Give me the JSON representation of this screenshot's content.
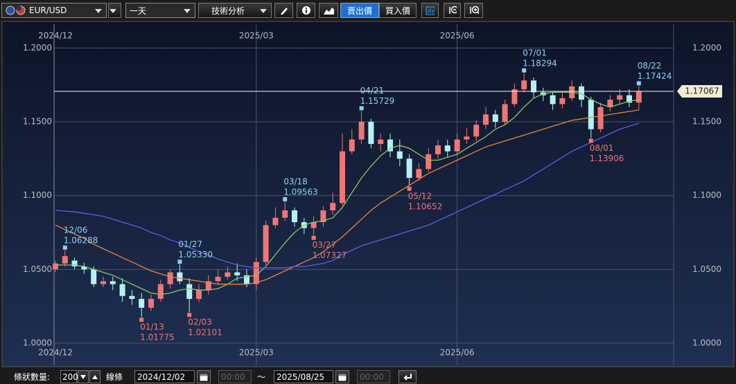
{
  "toolbar": {
    "symbol": "EUR/USD",
    "period": "一天",
    "analysis": "技術分析",
    "sell": "賣出價",
    "buy": "買入價"
  },
  "chart_data": {
    "type": "candlestick",
    "categories": [
      "2024/12",
      null,
      null,
      null,
      null,
      null,
      null,
      null,
      null,
      null,
      null,
      null,
      null,
      null,
      null,
      null,
      null,
      null,
      null,
      null,
      null,
      "2025/03",
      null,
      null,
      null,
      null,
      null,
      null,
      null,
      null,
      null,
      null,
      null,
      null,
      null,
      null,
      null,
      null,
      null,
      null,
      null,
      null,
      "2025/06",
      null,
      null,
      null,
      null,
      null,
      null,
      null,
      null,
      null,
      null,
      null,
      null,
      null,
      null,
      null,
      null,
      null,
      null,
      null
    ],
    "open": [
      1.05,
      1.054,
      1.056,
      1.052,
      1.05,
      1.04,
      1.042,
      1.04,
      1.032,
      1.03,
      1.024,
      1.03,
      1.04,
      1.048,
      1.04,
      1.03,
      1.036,
      1.042,
      1.045,
      1.048,
      1.046,
      1.04,
      1.055,
      1.08,
      1.085,
      1.09,
      1.082,
      1.078,
      1.082,
      1.09,
      1.095,
      1.13,
      1.138,
      1.15,
      1.135,
      1.138,
      1.13,
      1.125,
      1.112,
      1.118,
      1.128,
      1.134,
      1.13,
      1.138,
      1.14,
      1.148,
      1.155,
      1.15,
      1.162,
      1.172,
      1.178,
      1.17,
      1.168,
      1.162,
      1.166,
      1.174,
      1.165,
      1.145,
      1.16,
      1.165,
      1.168,
      1.163
    ],
    "high": [
      1.056,
      1.06288,
      1.058,
      1.0545,
      1.052,
      1.045,
      1.045,
      1.044,
      1.036,
      1.034,
      1.033,
      1.043,
      1.05,
      1.0533,
      1.044,
      1.04,
      1.046,
      1.05,
      1.052,
      1.054,
      1.05,
      1.058,
      1.083,
      1.092,
      1.09563,
      1.092,
      1.085,
      1.086,
      1.093,
      1.102,
      1.142,
      1.145,
      1.15729,
      1.152,
      1.142,
      1.142,
      1.138,
      1.128,
      1.122,
      1.132,
      1.138,
      1.138,
      1.142,
      1.146,
      1.151,
      1.16,
      1.158,
      1.165,
      1.176,
      1.18294,
      1.18,
      1.173,
      1.17,
      1.17,
      1.178,
      1.176,
      1.167,
      1.163,
      1.168,
      1.172,
      1.172,
      1.17424
    ],
    "low": [
      1.048,
      1.052,
      1.05,
      1.047,
      1.038,
      1.038,
      1.036,
      1.028,
      1.026,
      1.01775,
      1.022,
      1.028,
      1.037,
      1.04,
      1.02101,
      1.028,
      1.033,
      1.04,
      1.043,
      1.042,
      1.038,
      1.036,
      1.053,
      1.078,
      1.083,
      1.079,
      1.074,
      1.07327,
      1.079,
      1.087,
      1.093,
      1.128,
      1.135,
      1.132,
      1.13,
      1.126,
      1.12,
      1.10652,
      1.11,
      1.116,
      1.125,
      1.126,
      1.127,
      1.135,
      1.137,
      1.145,
      1.146,
      1.148,
      1.16,
      1.17,
      1.166,
      1.164,
      1.158,
      1.159,
      1.164,
      1.16,
      1.13906,
      1.143,
      1.157,
      1.162,
      1.16,
      1.158
    ],
    "close": [
      1.054,
      1.059,
      1.052,
      1.05,
      1.04,
      1.042,
      1.04,
      1.032,
      1.03,
      1.024,
      1.03,
      1.04,
      1.048,
      1.042,
      1.03,
      1.036,
      1.042,
      1.045,
      1.048,
      1.046,
      1.04,
      1.055,
      1.08,
      1.085,
      1.09,
      1.082,
      1.078,
      1.082,
      1.09,
      1.095,
      1.13,
      1.138,
      1.15,
      1.135,
      1.138,
      1.13,
      1.125,
      1.112,
      1.118,
      1.128,
      1.134,
      1.13,
      1.138,
      1.14,
      1.148,
      1.155,
      1.15,
      1.162,
      1.172,
      1.178,
      1.17,
      1.168,
      1.162,
      1.166,
      1.174,
      1.165,
      1.145,
      1.16,
      1.165,
      1.168,
      1.163,
      1.17067
    ],
    "up_color": "#f07575",
    "down_color": "#b4f2f2",
    "moving_averages": [
      {
        "color": "#8cc66a",
        "values": [
          1.053,
          1.053,
          1.053,
          1.052,
          1.05,
          1.048,
          1.046,
          1.043,
          1.04,
          1.037,
          1.034,
          1.033,
          1.034,
          1.036,
          1.037,
          1.036,
          1.036,
          1.037,
          1.04,
          1.044,
          1.045,
          1.046,
          1.052,
          1.06,
          1.068,
          1.075,
          1.08,
          1.082,
          1.083,
          1.085,
          1.092,
          1.102,
          1.112,
          1.12,
          1.127,
          1.132,
          1.134,
          1.132,
          1.128,
          1.124,
          1.124,
          1.126,
          1.128,
          1.132,
          1.136,
          1.14,
          1.145,
          1.148,
          1.153,
          1.16,
          1.166,
          1.169,
          1.17,
          1.17,
          1.17,
          1.169,
          1.165,
          1.162,
          1.16,
          1.162,
          1.164,
          1.165
        ]
      },
      {
        "color": "#e8873a",
        "values": [
          1.08,
          1.077,
          1.074,
          1.071,
          1.067,
          1.064,
          1.061,
          1.058,
          1.055,
          1.052,
          1.049,
          1.047,
          1.045,
          1.044,
          1.043,
          1.042,
          1.041,
          1.04,
          1.04,
          1.04,
          1.04,
          1.041,
          1.043,
          1.046,
          1.049,
          1.052,
          1.055,
          1.058,
          1.062,
          1.067,
          1.072,
          1.078,
          1.084,
          1.09,
          1.095,
          1.099,
          1.103,
          1.107,
          1.111,
          1.115,
          1.118,
          1.121,
          1.124,
          1.127,
          1.13,
          1.133,
          1.135,
          1.137,
          1.139,
          1.141,
          1.143,
          1.145,
          1.147,
          1.149,
          1.151,
          1.152,
          1.153,
          1.154,
          1.155,
          1.156,
          1.157,
          1.158
        ]
      },
      {
        "color": "#5b5fe6",
        "values": [
          1.09,
          1.0895,
          1.089,
          1.088,
          1.087,
          1.086,
          1.084,
          1.082,
          1.08,
          1.078,
          1.075,
          1.073,
          1.07,
          1.068,
          1.065,
          1.062,
          1.06,
          1.057,
          1.055,
          1.053,
          1.052,
          1.051,
          1.051,
          1.051,
          1.051,
          1.052,
          1.052,
          1.053,
          1.054,
          1.056,
          1.06,
          1.063,
          1.066,
          1.068,
          1.07,
          1.072,
          1.074,
          1.076,
          1.078,
          1.08,
          1.083,
          1.086,
          1.089,
          1.092,
          1.095,
          1.098,
          1.101,
          1.104,
          1.107,
          1.11,
          1.114,
          1.118,
          1.122,
          1.126,
          1.13,
          1.133,
          1.136,
          1.139,
          1.142,
          1.145,
          1.147,
          1.149
        ]
      }
    ],
    "annotations": [
      {
        "date": "12/06",
        "value": 1.06288,
        "kind": "high"
      },
      {
        "date": "01/13",
        "value": 1.01775,
        "kind": "low"
      },
      {
        "date": "01/27",
        "value": 1.0533,
        "value_label": "1.05330",
        "kind": "high"
      },
      {
        "date": "02/03",
        "value": 1.02101,
        "kind": "low"
      },
      {
        "date": "03/18",
        "value": 1.09563,
        "kind": "high"
      },
      {
        "date": "03/27",
        "value": 1.07327,
        "kind": "low"
      },
      {
        "date": "04/21",
        "value": 1.15729,
        "kind": "high"
      },
      {
        "date": "05/12",
        "value": 1.10652,
        "kind": "low"
      },
      {
        "date": "07/01",
        "value": 1.18294,
        "kind": "high"
      },
      {
        "date": "08/01",
        "value": 1.13906,
        "kind": "low"
      },
      {
        "date": "08/22",
        "value": 1.17424,
        "kind": "high"
      }
    ],
    "last_price": 1.17067,
    "ylim": [
      0.985,
      1.218
    ],
    "yticks": [
      {
        "value": 1.0,
        "label": "1.0000"
      },
      {
        "value": 1.05,
        "label": "1.0500"
      },
      {
        "value": 1.1,
        "label": "1.1000"
      },
      {
        "value": 1.15,
        "label": "1.1500"
      },
      {
        "value": 1.2,
        "label": "1.2000"
      }
    ],
    "grid": true
  },
  "footer": {
    "bar_count_label": "條狀數量:",
    "bar_count": 200,
    "line_label": "線條",
    "start_date": "2024/12/02",
    "start_time": "00:00",
    "separator": "～",
    "end_date": "2025/08/25",
    "end_time": "00:00"
  }
}
